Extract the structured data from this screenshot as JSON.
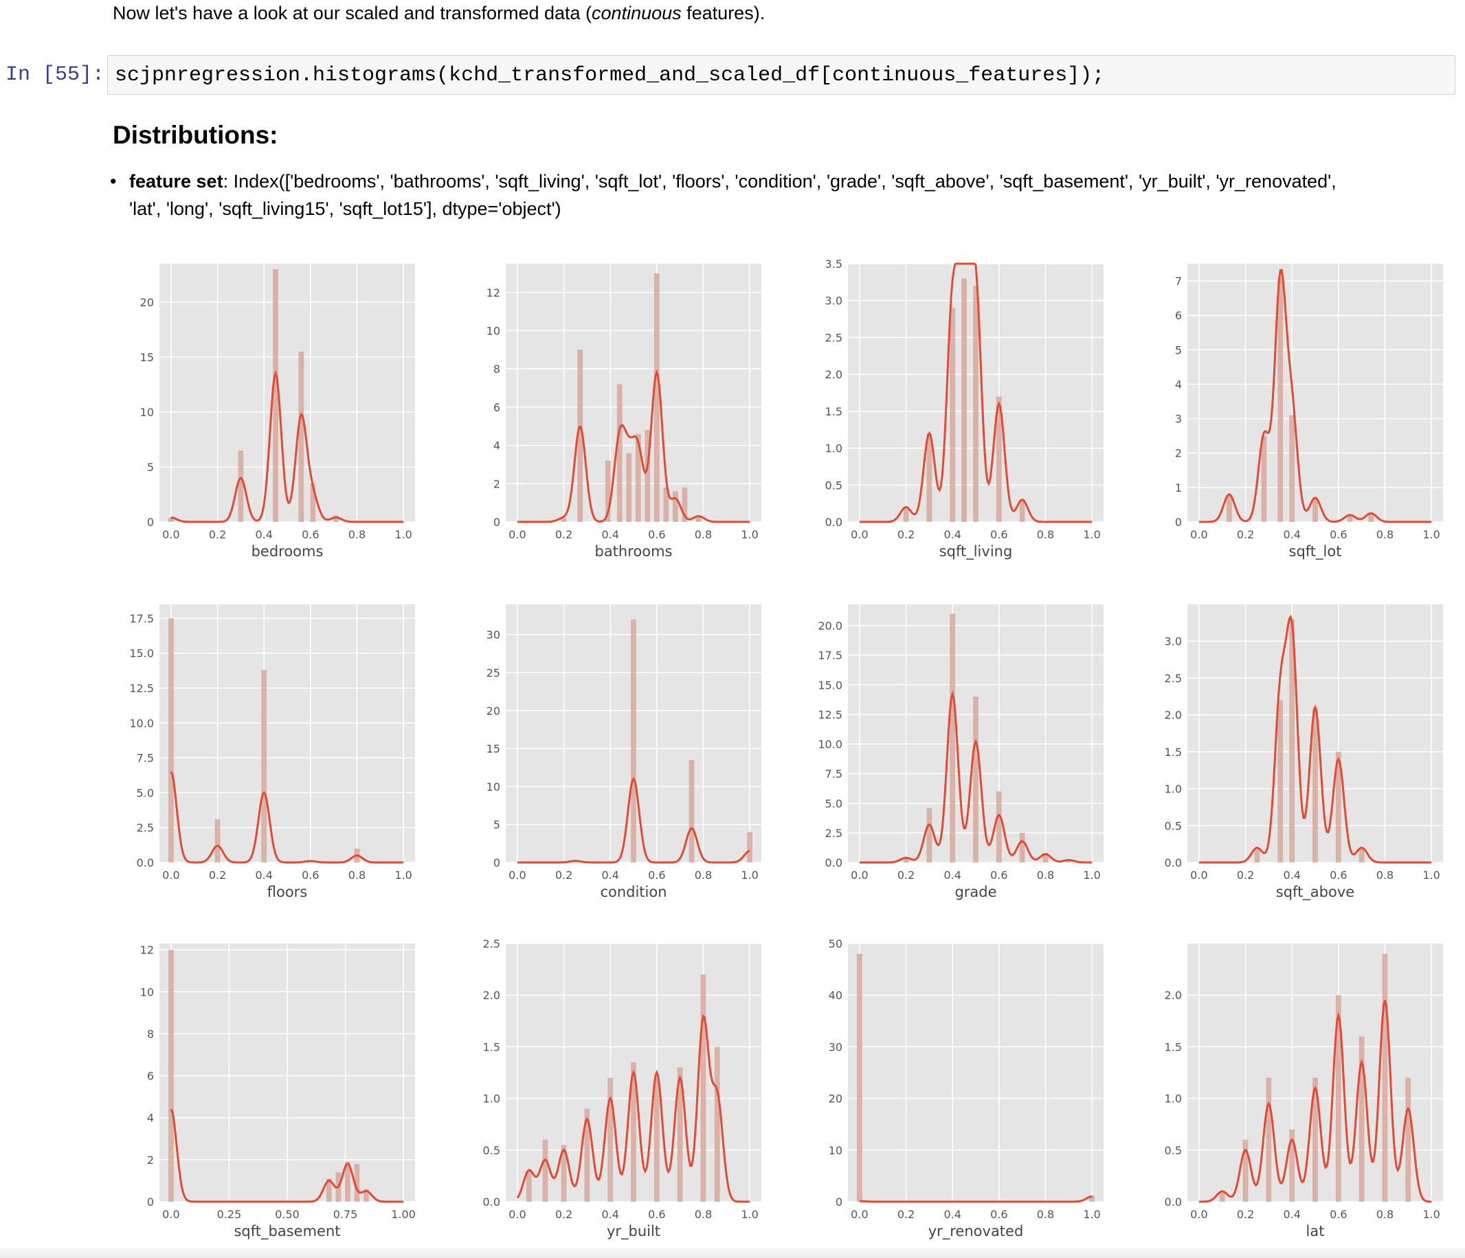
{
  "markdown": {
    "intro_before": "Now let's have a look at our scaled and transformed data (",
    "intro_em": "continuous",
    "intro_after": " features)."
  },
  "code_cell": {
    "prompt": "In [55]:",
    "source": "scjpnregression.histograms(kchd_transformed_and_scaled_df[continuous_features]);"
  },
  "output": {
    "heading": "Distributions:",
    "bullet_label": "feature set",
    "bullet_text": ": Index(['bedrooms', 'bathrooms', 'sqft_living', 'sqft_lot', 'floors', 'condition', 'grade', 'sqft_above', 'sqft_basement', 'yr_built', 'yr_renovated', 'lat', 'long', 'sqft_living15', 'sqft_lot15'], dtype='object')"
  },
  "colors": {
    "bar": "#d8a89c",
    "line": "#e24a33",
    "plot_bg": "#e5e5e5",
    "grid": "#ffffff",
    "tick_text": "#555555",
    "prompt": "#303f9f"
  },
  "chart_data": [
    {
      "type": "histogram",
      "xlabel": "bedrooms",
      "xlim": [
        -0.05,
        1.05
      ],
      "ylim": [
        0,
        23.5
      ],
      "grid": true,
      "x_ticks": [
        "0.0",
        "0.2",
        "0.4",
        "0.6",
        "0.8",
        "1.0"
      ],
      "y_ticks": [
        "0",
        "5",
        "10",
        "15",
        "20"
      ],
      "bins": [
        [
          0.0,
          0.4
        ],
        [
          0.3,
          6.5
        ],
        [
          0.45,
          23
        ],
        [
          0.56,
          15.5
        ],
        [
          0.61,
          3.5
        ],
        [
          0.71,
          0.6
        ]
      ],
      "kde": [
        [
          0.0,
          0.4
        ],
        [
          0.3,
          4
        ],
        [
          0.45,
          13.5
        ],
        [
          0.56,
          9.5
        ],
        [
          0.61,
          2.2
        ],
        [
          0.71,
          0.4
        ]
      ]
    },
    {
      "type": "histogram",
      "xlabel": "bathrooms",
      "xlim": [
        -0.05,
        1.05
      ],
      "ylim": [
        0,
        13.5
      ],
      "grid": true,
      "x_ticks": [
        "0.0",
        "0.2",
        "0.4",
        "0.6",
        "0.8",
        "1.0"
      ],
      "y_ticks": [
        "0",
        "2",
        "4",
        "6",
        "8",
        "10",
        "12"
      ],
      "bins": [
        [
          0.2,
          0.2
        ],
        [
          0.27,
          9
        ],
        [
          0.39,
          3.2
        ],
        [
          0.44,
          7.2
        ],
        [
          0.48,
          3.6
        ],
        [
          0.52,
          4.6
        ],
        [
          0.56,
          4.8
        ],
        [
          0.6,
          13
        ],
        [
          0.64,
          1.8
        ],
        [
          0.68,
          1.6
        ],
        [
          0.72,
          1.8
        ],
        [
          0.78,
          0.3
        ]
      ],
      "kde": [
        [
          0.2,
          0.2
        ],
        [
          0.27,
          5
        ],
        [
          0.44,
          4.2
        ],
        [
          0.48,
          2.5
        ],
        [
          0.52,
          3.5
        ],
        [
          0.6,
          7.8
        ],
        [
          0.68,
          1.2
        ],
        [
          0.78,
          0.3
        ]
      ]
    },
    {
      "type": "histogram",
      "xlabel": "sqft_living",
      "xlim": [
        -0.05,
        1.05
      ],
      "ylim": [
        0,
        3.5
      ],
      "grid": true,
      "x_ticks": [
        "0.0",
        "0.2",
        "0.4",
        "0.6",
        "0.8",
        "1.0"
      ],
      "y_ticks": [
        "0.0",
        "0.5",
        "1.0",
        "1.5",
        "2.0",
        "2.5",
        "3.0",
        "3.5"
      ],
      "bins": [
        [
          0.2,
          0.2
        ],
        [
          0.3,
          1.2
        ],
        [
          0.4,
          2.9
        ],
        [
          0.45,
          3.3
        ],
        [
          0.5,
          3.2
        ],
        [
          0.6,
          1.7
        ],
        [
          0.7,
          0.3
        ]
      ],
      "kde": [
        [
          0.2,
          0.2
        ],
        [
          0.3,
          1.2
        ],
        [
          0.4,
          2.9
        ],
        [
          0.45,
          3.2
        ],
        [
          0.5,
          3.1
        ],
        [
          0.6,
          1.6
        ],
        [
          0.7,
          0.3
        ]
      ]
    },
    {
      "type": "histogram",
      "xlabel": "sqft_lot",
      "xlim": [
        -0.05,
        1.05
      ],
      "ylim": [
        0,
        7.5
      ],
      "grid": true,
      "x_ticks": [
        "0.0",
        "0.2",
        "0.4",
        "0.6",
        "0.8",
        "1.0"
      ],
      "y_ticks": [
        "0",
        "1",
        "2",
        "3",
        "4",
        "5",
        "6",
        "7"
      ],
      "bins": [
        [
          0.13,
          0.8
        ],
        [
          0.28,
          2.5
        ],
        [
          0.35,
          7.1
        ],
        [
          0.4,
          3.1
        ],
        [
          0.5,
          0.7
        ],
        [
          0.65,
          0.2
        ],
        [
          0.74,
          0.25
        ]
      ],
      "kde": [
        [
          0.13,
          0.8
        ],
        [
          0.28,
          2.5
        ],
        [
          0.35,
          6.9
        ],
        [
          0.4,
          3.1
        ],
        [
          0.5,
          0.7
        ],
        [
          0.65,
          0.2
        ],
        [
          0.74,
          0.25
        ]
      ]
    },
    {
      "type": "histogram",
      "xlabel": "floors",
      "xlim": [
        -0.05,
        1.05
      ],
      "ylim": [
        0,
        18.5
      ],
      "grid": true,
      "x_ticks": [
        "0.0",
        "0.2",
        "0.4",
        "0.6",
        "0.8",
        "1.0"
      ],
      "y_ticks": [
        "0.0",
        "2.5",
        "5.0",
        "7.5",
        "10.0",
        "12.5",
        "15.0",
        "17.5"
      ],
      "bins": [
        [
          0.0,
          17.5
        ],
        [
          0.2,
          3.1
        ],
        [
          0.4,
          13.8
        ],
        [
          0.6,
          0.15
        ],
        [
          0.8,
          1.0
        ]
      ],
      "kde": [
        [
          0.0,
          6.5
        ],
        [
          0.2,
          1.2
        ],
        [
          0.4,
          5.0
        ],
        [
          0.6,
          0.1
        ],
        [
          0.8,
          0.5
        ]
      ]
    },
    {
      "type": "histogram",
      "xlabel": "condition",
      "xlim": [
        -0.05,
        1.05
      ],
      "ylim": [
        0,
        34
      ],
      "grid": true,
      "x_ticks": [
        "0.0",
        "0.2",
        "0.4",
        "0.6",
        "0.8",
        "1.0"
      ],
      "y_ticks": [
        "0",
        "5",
        "10",
        "15",
        "20",
        "25",
        "30"
      ],
      "bins": [
        [
          0.25,
          0.2
        ],
        [
          0.5,
          32
        ],
        [
          0.75,
          13.5
        ],
        [
          1.0,
          4
        ]
      ],
      "kde": [
        [
          0.25,
          0.2
        ],
        [
          0.5,
          11
        ],
        [
          0.75,
          4.5
        ],
        [
          1.0,
          1.5
        ]
      ]
    },
    {
      "type": "histogram",
      "xlabel": "grade",
      "xlim": [
        -0.05,
        1.05
      ],
      "ylim": [
        0,
        21.8
      ],
      "grid": true,
      "x_ticks": [
        "0.0",
        "0.2",
        "0.4",
        "0.6",
        "0.8",
        "1.0"
      ],
      "y_ticks": [
        "0.0",
        "2.5",
        "5.0",
        "7.5",
        "10.0",
        "12.5",
        "15.0",
        "17.5",
        "20.0"
      ],
      "bins": [
        [
          0.2,
          0.4
        ],
        [
          0.3,
          4.6
        ],
        [
          0.4,
          21
        ],
        [
          0.5,
          14
        ],
        [
          0.6,
          6
        ],
        [
          0.7,
          2.5
        ],
        [
          0.8,
          0.8
        ],
        [
          0.9,
          0.2
        ]
      ],
      "kde": [
        [
          0.2,
          0.4
        ],
        [
          0.3,
          3.2
        ],
        [
          0.4,
          14.2
        ],
        [
          0.5,
          10.2
        ],
        [
          0.6,
          4
        ],
        [
          0.7,
          1.8
        ],
        [
          0.8,
          0.7
        ],
        [
          0.9,
          0.2
        ]
      ]
    },
    {
      "type": "histogram",
      "xlabel": "sqft_above",
      "xlim": [
        -0.05,
        1.05
      ],
      "ylim": [
        0,
        3.5
      ],
      "grid": true,
      "x_ticks": [
        "0.0",
        "0.2",
        "0.4",
        "0.6",
        "0.8",
        "1.0"
      ],
      "y_ticks": [
        "0.0",
        "0.5",
        "1.0",
        "1.5",
        "2.0",
        "2.5",
        "3.0"
      ],
      "bins": [
        [
          0.25,
          0.2
        ],
        [
          0.35,
          2.2
        ],
        [
          0.4,
          3.3
        ],
        [
          0.5,
          2.1
        ],
        [
          0.6,
          1.5
        ],
        [
          0.7,
          0.2
        ]
      ],
      "kde": [
        [
          0.25,
          0.2
        ],
        [
          0.35,
          2.2
        ],
        [
          0.4,
          3.0
        ],
        [
          0.5,
          2.1
        ],
        [
          0.6,
          1.4
        ],
        [
          0.7,
          0.2
        ]
      ]
    },
    {
      "type": "histogram",
      "xlabel": "sqft_basement",
      "xlim": [
        -0.05,
        1.05
      ],
      "ylim": [
        0,
        12.3
      ],
      "grid": true,
      "x_ticks": [
        "0.0",
        "0.25",
        "0.50",
        "0.75",
        "1.00"
      ],
      "y_ticks": [
        "0",
        "2",
        "4",
        "6",
        "8",
        "10",
        "12"
      ],
      "bins": [
        [
          0.0,
          12
        ],
        [
          0.68,
          1.1
        ],
        [
          0.72,
          1.4
        ],
        [
          0.76,
          1.9
        ],
        [
          0.8,
          1.8
        ],
        [
          0.84,
          0.6
        ]
      ],
      "kde": [
        [
          0.0,
          4.4
        ],
        [
          0.68,
          1.0
        ],
        [
          0.76,
          1.8
        ],
        [
          0.84,
          0.5
        ]
      ]
    },
    {
      "type": "histogram",
      "xlabel": "yr_built",
      "xlim": [
        -0.05,
        1.05
      ],
      "ylim": [
        0,
        2.5
      ],
      "grid": true,
      "x_ticks": [
        "0.0",
        "0.2",
        "0.4",
        "0.6",
        "0.8",
        "1.0"
      ],
      "y_ticks": [
        "0.0",
        "0.5",
        "1.0",
        "1.5",
        "2.0",
        "2.5"
      ],
      "bins": [
        [
          0.05,
          0.3
        ],
        [
          0.12,
          0.6
        ],
        [
          0.2,
          0.55
        ],
        [
          0.3,
          0.9
        ],
        [
          0.4,
          1.2
        ],
        [
          0.5,
          1.35
        ],
        [
          0.6,
          1.2
        ],
        [
          0.7,
          1.3
        ],
        [
          0.8,
          2.2
        ],
        [
          0.86,
          1.5
        ]
      ],
      "kde": [
        [
          0.05,
          0.3
        ],
        [
          0.12,
          0.4
        ],
        [
          0.2,
          0.5
        ],
        [
          0.3,
          0.8
        ],
        [
          0.4,
          1.0
        ],
        [
          0.5,
          1.25
        ],
        [
          0.6,
          1.25
        ],
        [
          0.7,
          1.2
        ],
        [
          0.8,
          1.75
        ],
        [
          0.86,
          1.0
        ]
      ]
    },
    {
      "type": "histogram",
      "xlabel": "yr_renovated",
      "xlim": [
        -0.05,
        1.05
      ],
      "ylim": [
        0,
        50
      ],
      "grid": true,
      "x_ticks": [
        "0.0",
        "0.2",
        "0.4",
        "0.6",
        "0.8",
        "1.0"
      ],
      "y_ticks": [
        "0",
        "10",
        "20",
        "30",
        "40",
        "50"
      ],
      "bins": [
        [
          0.0,
          48
        ],
        [
          1.0,
          1.2
        ]
      ],
      "kde": [
        [
          0.0,
          0.1
        ],
        [
          1.0,
          1.0
        ]
      ]
    },
    {
      "type": "histogram",
      "xlabel": "lat",
      "xlim": [
        -0.05,
        1.05
      ],
      "ylim": [
        0,
        2.5
      ],
      "grid": true,
      "x_ticks": [
        "0.0",
        "0.2",
        "0.4",
        "0.6",
        "0.8",
        "1.0"
      ],
      "y_ticks": [
        "0.0",
        "0.5",
        "1.0",
        "1.5",
        "2.0"
      ],
      "bins": [
        [
          0.1,
          0.1
        ],
        [
          0.2,
          0.6
        ],
        [
          0.3,
          1.2
        ],
        [
          0.4,
          0.7
        ],
        [
          0.5,
          1.2
        ],
        [
          0.6,
          2.0
        ],
        [
          0.7,
          1.6
        ],
        [
          0.8,
          2.4
        ],
        [
          0.9,
          1.2
        ]
      ],
      "kde": [
        [
          0.1,
          0.1
        ],
        [
          0.2,
          0.5
        ],
        [
          0.3,
          0.95
        ],
        [
          0.4,
          0.6
        ],
        [
          0.5,
          1.1
        ],
        [
          0.6,
          1.8
        ],
        [
          0.7,
          1.35
        ],
        [
          0.8,
          1.95
        ],
        [
          0.9,
          0.9
        ]
      ]
    }
  ]
}
